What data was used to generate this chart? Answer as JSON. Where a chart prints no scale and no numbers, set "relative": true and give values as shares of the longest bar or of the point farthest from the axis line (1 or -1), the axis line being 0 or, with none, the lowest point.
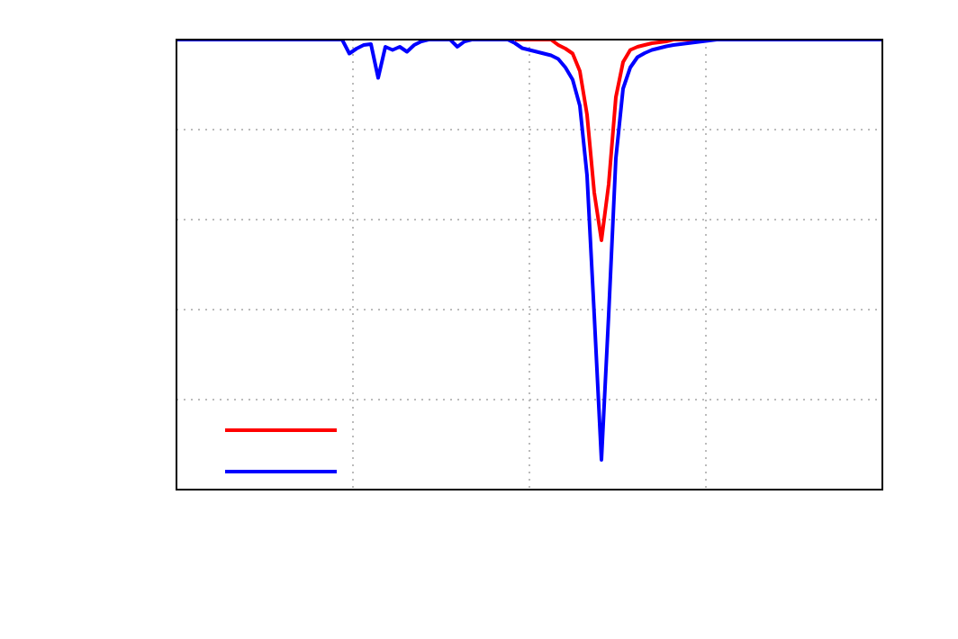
{
  "chart_data": {
    "type": "line",
    "relative": true,
    "grid": true,
    "marker": "none",
    "line_style": "solid",
    "categories": [
      null,
      null,
      null,
      null,
      null,
      null,
      null,
      null,
      null,
      null,
      null,
      null,
      null,
      null,
      null,
      null,
      null,
      null,
      null,
      null,
      null,
      null,
      null,
      null,
      null,
      null,
      null,
      null,
      null,
      null,
      null,
      null,
      null,
      null,
      null,
      null,
      null,
      null,
      null,
      null,
      null,
      null,
      null,
      null,
      null,
      null,
      null,
      null,
      null,
      null,
      null,
      null,
      null,
      null,
      null,
      null,
      null,
      null,
      null,
      null,
      null,
      null,
      null,
      null,
      null,
      null,
      null,
      null,
      null,
      null,
      null,
      null,
      null,
      null,
      null,
      null,
      null,
      null,
      null,
      null,
      null,
      null,
      null,
      null,
      null,
      null,
      null,
      null,
      null,
      null,
      null,
      null,
      null,
      null,
      null,
      null,
      null,
      null,
      null
    ],
    "series": [
      {
        "color": "#ff0000",
        "values": [
          null,
          null,
          null,
          null,
          null,
          null,
          null,
          null,
          null,
          null,
          null,
          null,
          null,
          null,
          null,
          null,
          null,
          null,
          null,
          null,
          null,
          null,
          null,
          null,
          null,
          null,
          null,
          null,
          null,
          null,
          null,
          null,
          null,
          null,
          null,
          null,
          null,
          null,
          null,
          null,
          null,
          null,
          null,
          null,
          null,
          null,
          null,
          1,
          1,
          1,
          1,
          1,
          1,
          0.988,
          0.98,
          0.969,
          0.93,
          0.833,
          0.66,
          0.554,
          0.678,
          0.872,
          0.95,
          0.977,
          0.984,
          0.988,
          0.992,
          0.994,
          0.996,
          1,
          1,
          1,
          1,
          null,
          null,
          null,
          null,
          null,
          null,
          null,
          null,
          null,
          null,
          null,
          null,
          null,
          null,
          null,
          null,
          null,
          null,
          null,
          null,
          null,
          null,
          null,
          null,
          null,
          null
        ]
      },
      {
        "color": "#0000ff",
        "values": [
          1,
          1,
          1,
          1,
          1,
          1,
          1,
          1,
          1,
          1,
          1,
          1,
          1,
          1,
          1,
          1,
          1,
          1,
          1,
          1,
          1,
          1,
          1,
          1,
          0.969,
          0.98,
          0.988,
          0.99,
          0.915,
          0.984,
          0.977,
          0.984,
          0.973,
          0.988,
          0.996,
          1,
          1,
          1,
          1,
          0.984,
          0.996,
          1,
          1,
          1,
          1,
          1,
          1,
          0.992,
          0.981,
          0.977,
          0.973,
          0.969,
          0.965,
          0.957,
          0.938,
          0.911,
          0.853,
          0.698,
          0.388,
          0.066,
          0.388,
          0.736,
          0.891,
          0.938,
          0.961,
          0.97,
          0.977,
          0.981,
          0.985,
          0.988,
          0.99,
          0.992,
          0.994,
          0.996,
          0.998,
          1,
          1,
          1,
          1,
          1,
          1,
          1,
          1,
          1,
          1,
          1,
          1,
          1,
          1,
          1,
          1,
          1,
          1,
          1,
          1,
          1,
          1,
          1,
          1
        ]
      }
    ]
  }
}
